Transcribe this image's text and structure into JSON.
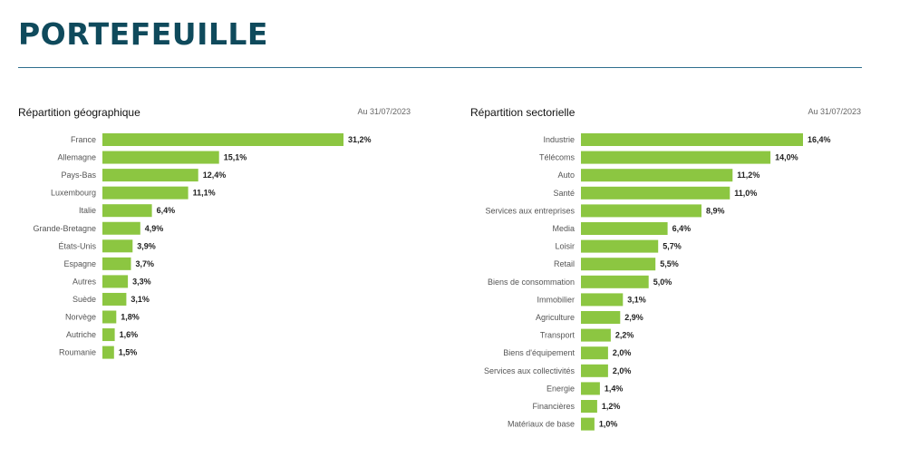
{
  "header": {
    "title": "PORTEFEUILLE"
  },
  "colors": {
    "bar": "#8cc641",
    "title": "#0f4a5c",
    "rule": "#2e6f8e"
  },
  "panels": {
    "geo": {
      "title": "Répartition géographique",
      "date": "Au 31/07/2023"
    },
    "sector": {
      "title": "Répartition sectorielle",
      "date": "Au 31/07/2023"
    }
  },
  "chart_data": [
    {
      "type": "bar",
      "orientation": "horizontal",
      "title": "Répartition géographique",
      "categories": [
        "France",
        "Allemagne",
        "Pays-Bas",
        "Luxembourg",
        "Italie",
        "Grande-Bretagne",
        "États-Unis",
        "Espagne",
        "Autres",
        "Suède",
        "Norvège",
        "Autriche",
        "Roumanie"
      ],
      "values": [
        31.2,
        15.1,
        12.4,
        11.1,
        6.4,
        4.9,
        3.9,
        3.7,
        3.3,
        3.1,
        1.8,
        1.6,
        1.5
      ],
      "labels": [
        "31,2%",
        "15,1%",
        "12,4%",
        "11,1%",
        "6,4%",
        "4,9%",
        "3,9%",
        "3,7%",
        "3,3%",
        "3,1%",
        "1,8%",
        "1,6%",
        "1,5%"
      ],
      "xlim": [
        0,
        31.2
      ],
      "grid": false,
      "legend": "none"
    },
    {
      "type": "bar",
      "orientation": "horizontal",
      "title": "Répartition sectorielle",
      "categories": [
        "Industrie",
        "Télécoms",
        "Auto",
        "Santé",
        "Services aux entreprises",
        "Media",
        "Loisir",
        "Retail",
        "Biens de consommation",
        "Immobilier",
        "Agriculture",
        "Transport",
        "Biens d'équipement",
        "Services aux collectivités",
        "Energie",
        "Financières",
        "Matériaux de base"
      ],
      "values": [
        16.4,
        14.0,
        11.2,
        11.0,
        8.9,
        6.4,
        5.7,
        5.5,
        5.0,
        3.1,
        2.9,
        2.2,
        2.0,
        2.0,
        1.4,
        1.2,
        1.0
      ],
      "labels": [
        "16,4%",
        "14,0%",
        "11,2%",
        "11,0%",
        "8,9%",
        "6,4%",
        "5,7%",
        "5,5%",
        "5,0%",
        "3,1%",
        "2,9%",
        "2,2%",
        "2,0%",
        "2,0%",
        "1,4%",
        "1,2%",
        "1,0%"
      ],
      "xlim": [
        0,
        16.4
      ],
      "grid": false,
      "legend": "none"
    }
  ]
}
